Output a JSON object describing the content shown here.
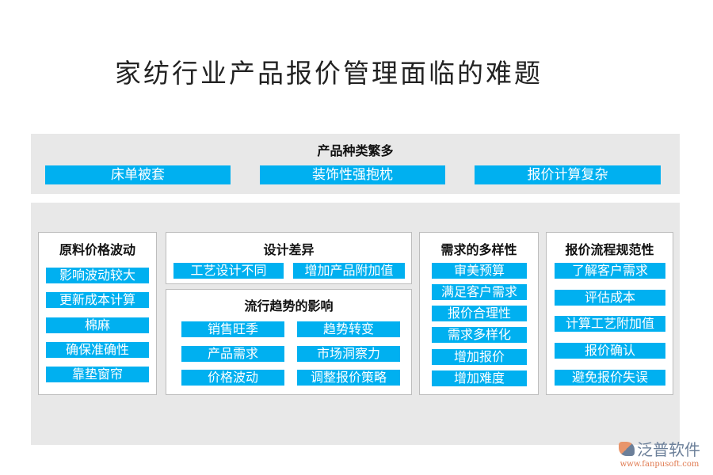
{
  "title": "家纺行业产品报价管理面临的难题",
  "top": {
    "heading": "产品种类繁多",
    "items": [
      "床单被套",
      "装饰性强抱枕",
      "报价计算复杂"
    ]
  },
  "box1": {
    "heading": "原料价格波动",
    "items": [
      "影响波动较大",
      "更新成本计算",
      "棉麻",
      "确保准确性",
      "靠垫窗帘"
    ]
  },
  "box2": {
    "heading": "设计差异",
    "items": [
      "工艺设计不同",
      "增加产品附加值"
    ]
  },
  "box3": {
    "heading": "流行趋势的影响",
    "items": [
      "销售旺季",
      "趋势转变",
      "产品需求",
      "市场洞察力",
      "价格波动",
      "调整报价策略"
    ]
  },
  "box4": {
    "heading": "需求的多样性",
    "items": [
      "审美预算",
      "满足客户需求",
      "报价合理性",
      "需求多样化",
      "增加报价",
      "增加难度"
    ]
  },
  "box5": {
    "heading": "报价流程规范性",
    "items": [
      "了解客户需求",
      "评估成本",
      "计算工艺附加值",
      "报价确认",
      "避免报价失误"
    ]
  },
  "logo": {
    "name": "泛普软件",
    "url": "www.fanpusoft.com"
  },
  "colors": {
    "bar": "#00b0f0",
    "panel": "#e8e8e8"
  }
}
